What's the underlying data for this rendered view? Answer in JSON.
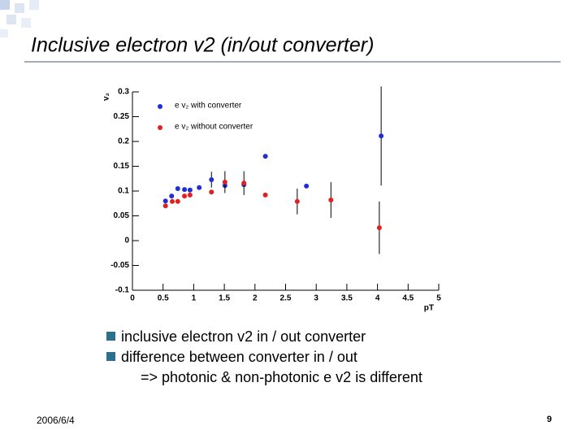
{
  "title": "Inclusive electron v2 (in/out converter)",
  "chart_data": {
    "type": "scatter",
    "y_label": "v₂",
    "x_label": "pT",
    "xlim": [
      0,
      5
    ],
    "xticks": [
      0,
      0.5,
      1,
      1.5,
      2,
      2.5,
      3,
      3.5,
      4,
      4.5,
      5
    ],
    "ylim": [
      -0.1,
      0.3
    ],
    "yticks": [
      -0.1,
      -0.05,
      0,
      0.05,
      0.1,
      0.15,
      0.2,
      0.25,
      0.3
    ],
    "legend": "top-left",
    "series": [
      {
        "name": "e v₂ with converter",
        "color": "#1f2fd0",
        "x": [
          0.54,
          0.64,
          0.74,
          0.85,
          0.94,
          1.09,
          1.29,
          1.51,
          1.82,
          2.17,
          2.84,
          4.06
        ],
        "values": [
          0.08,
          0.09,
          0.105,
          0.103,
          0.102,
          0.107,
          0.123,
          0.111,
          0.113,
          0.17,
          0.11,
          0.211
        ],
        "errors": [
          null,
          null,
          null,
          null,
          null,
          null,
          0.016,
          null,
          null,
          null,
          null,
          0.1
        ]
      },
      {
        "name": "e v₂ without converter",
        "color": "#e02020",
        "x": [
          0.54,
          0.65,
          0.74,
          0.85,
          0.94,
          1.29,
          1.51,
          1.82,
          2.17,
          2.69,
          3.24,
          4.03
        ],
        "values": [
          0.07,
          0.079,
          0.079,
          0.09,
          0.092,
          0.098,
          0.118,
          0.116,
          0.092,
          0.079,
          0.082,
          0.026
        ],
        "errors": [
          null,
          null,
          null,
          null,
          null,
          null,
          0.022,
          0.024,
          null,
          0.026,
          0.036,
          0.053
        ]
      }
    ]
  },
  "bullets": [
    "inclusive electron v2 in / out converter",
    "difference between converter in / out"
  ],
  "sub_bullet": "=> photonic & non-photonic e v2 is different",
  "date": "2006/6/4",
  "page": "9"
}
